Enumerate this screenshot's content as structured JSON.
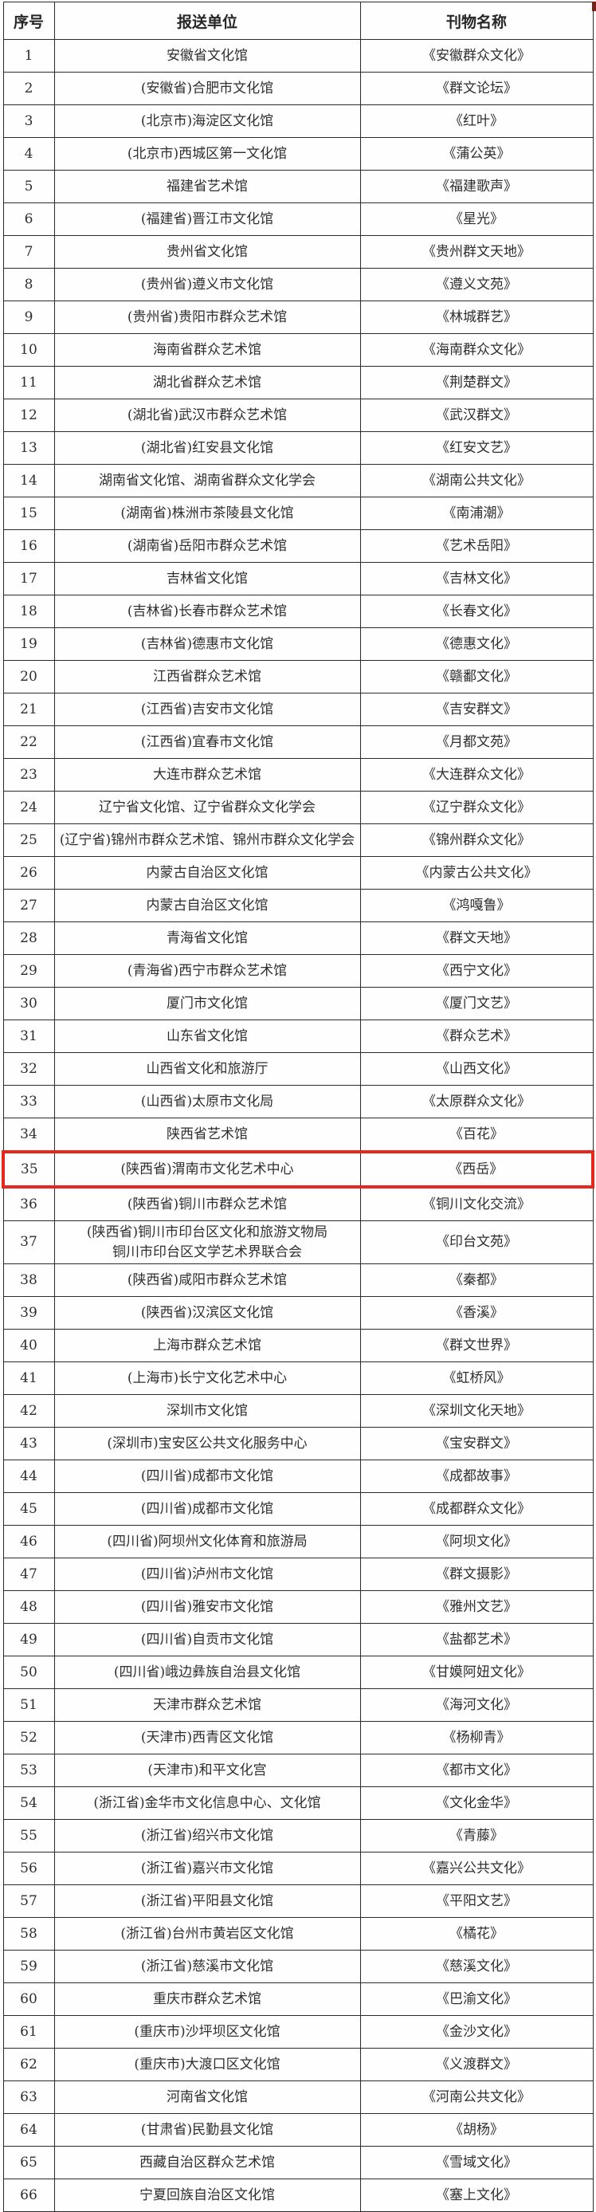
{
  "colors": {
    "highlight_border": "#e8271c",
    "grid_line": "#2b2b2b",
    "text": "#2e2e2e",
    "background": "#ffffff"
  },
  "table": {
    "columns": [
      "序号",
      "报送单位",
      "刊物名称"
    ],
    "highlight_row_no": "35",
    "rows": [
      {
        "no": "1",
        "unit": "安徽省文化馆",
        "publication": "《安徽群众文化》"
      },
      {
        "no": "2",
        "unit": "(安徽省)合肥市文化馆",
        "publication": "《群文论坛》"
      },
      {
        "no": "3",
        "unit": "(北京市)海淀区文化馆",
        "publication": "《红叶》"
      },
      {
        "no": "4",
        "unit": "(北京市)西城区第一文化馆",
        "publication": "《蒲公英》"
      },
      {
        "no": "5",
        "unit": "福建省艺术馆",
        "publication": "《福建歌声》"
      },
      {
        "no": "6",
        "unit": "(福建省)晋江市文化馆",
        "publication": "《星光》"
      },
      {
        "no": "7",
        "unit": "贵州省文化馆",
        "publication": "《贵州群文天地》"
      },
      {
        "no": "8",
        "unit": "(贵州省)遵义市文化馆",
        "publication": "《遵义文苑》"
      },
      {
        "no": "9",
        "unit": "(贵州省)贵阳市群众艺术馆",
        "publication": "《林城群艺》"
      },
      {
        "no": "10",
        "unit": "海南省群众艺术馆",
        "publication": "《海南群众文化》"
      },
      {
        "no": "11",
        "unit": "湖北省群众艺术馆",
        "publication": "《荆楚群文》"
      },
      {
        "no": "12",
        "unit": "(湖北省)武汉市群众艺术馆",
        "publication": "《武汉群文》"
      },
      {
        "no": "13",
        "unit": "(湖北省)红安县文化馆",
        "publication": "《红安文艺》"
      },
      {
        "no": "14",
        "unit": "湖南省文化馆、湖南省群众文化学会",
        "publication": "《湖南公共文化》"
      },
      {
        "no": "15",
        "unit": "(湖南省)株洲市茶陵县文化馆",
        "publication": "《南浦潮》"
      },
      {
        "no": "16",
        "unit": "(湖南省)岳阳市群众艺术馆",
        "publication": "《艺术岳阳》"
      },
      {
        "no": "17",
        "unit": "吉林省文化馆",
        "publication": "《吉林文化》"
      },
      {
        "no": "18",
        "unit": "(吉林省)长春市群众艺术馆",
        "publication": "《长春文化》"
      },
      {
        "no": "19",
        "unit": "(吉林省)德惠市文化馆",
        "publication": "《德惠文化》"
      },
      {
        "no": "20",
        "unit": "江西省群众艺术馆",
        "publication": "《赣鄱文化》"
      },
      {
        "no": "21",
        "unit": "(江西省)吉安市文化馆",
        "publication": "《吉安群文》"
      },
      {
        "no": "22",
        "unit": "(江西省)宜春市文化馆",
        "publication": "《月都文苑》"
      },
      {
        "no": "23",
        "unit": "大连市群众艺术馆",
        "publication": "《大连群众文化》"
      },
      {
        "no": "24",
        "unit": "辽宁省文化馆、辽宁省群众文化学会",
        "publication": "《辽宁群众文化》"
      },
      {
        "no": "25",
        "unit": "(辽宁省)锦州市群众艺术馆、锦州市群众文化学会",
        "publication": "《锦州群众文化》"
      },
      {
        "no": "26",
        "unit": "内蒙古自治区文化馆",
        "publication": "《内蒙古公共文化》"
      },
      {
        "no": "27",
        "unit": "内蒙古自治区文化馆",
        "publication": "《鸿嘎鲁》"
      },
      {
        "no": "28",
        "unit": "青海省文化馆",
        "publication": "《群文天地》"
      },
      {
        "no": "29",
        "unit": "(青海省)西宁市群众艺术馆",
        "publication": "《西宁文化》"
      },
      {
        "no": "30",
        "unit": "厦门市文化馆",
        "publication": "《厦门文艺》"
      },
      {
        "no": "31",
        "unit": "山东省文化馆",
        "publication": "《群众艺术》"
      },
      {
        "no": "32",
        "unit": "山西省文化和旅游厅",
        "publication": "《山西文化》"
      },
      {
        "no": "33",
        "unit": "(山西省)太原市文化局",
        "publication": "《太原群众文化》"
      },
      {
        "no": "34",
        "unit": "陕西省艺术馆",
        "publication": "《百花》"
      },
      {
        "no": "35",
        "unit": "(陕西省)渭南市文化艺术中心",
        "publication": "《西岳》"
      },
      {
        "no": "36",
        "unit": "(陕西省)铜川市群众艺术馆",
        "publication": "《铜川文化交流》"
      },
      {
        "no": "37",
        "unit": "(陕西省)铜川市印台区文化和旅游文物局\n铜川市印台区文学艺术界联合会",
        "publication": "《印台文苑》"
      },
      {
        "no": "38",
        "unit": "(陕西省)咸阳市群众艺术馆",
        "publication": "《秦都》"
      },
      {
        "no": "39",
        "unit": "(陕西省)汉滨区文化馆",
        "publication": "《香溪》"
      },
      {
        "no": "40",
        "unit": "上海市群众艺术馆",
        "publication": "《群文世界》"
      },
      {
        "no": "41",
        "unit": "(上海市)长宁文化艺术中心",
        "publication": "《虹桥风》"
      },
      {
        "no": "42",
        "unit": "深圳市文化馆",
        "publication": "《深圳文化天地》"
      },
      {
        "no": "43",
        "unit": "(深圳市)宝安区公共文化服务中心",
        "publication": "《宝安群文》"
      },
      {
        "no": "44",
        "unit": "(四川省)成都市文化馆",
        "publication": "《成都故事》"
      },
      {
        "no": "45",
        "unit": "(四川省)成都市文化馆",
        "publication": "《成都群众文化》"
      },
      {
        "no": "46",
        "unit": "(四川省)阿坝州文化体育和旅游局",
        "publication": "《阿坝文化》"
      },
      {
        "no": "47",
        "unit": "(四川省)泸州市文化馆",
        "publication": "《群文摄影》"
      },
      {
        "no": "48",
        "unit": "(四川省)雅安市文化馆",
        "publication": "《雅州文艺》"
      },
      {
        "no": "49",
        "unit": "(四川省)自贡市文化馆",
        "publication": "《盐都艺术》"
      },
      {
        "no": "50",
        "unit": "(四川省)峨边彝族自治县文化馆",
        "publication": "《甘嫫阿妞文化》"
      },
      {
        "no": "51",
        "unit": "天津市群众艺术馆",
        "publication": "《海河文化》"
      },
      {
        "no": "52",
        "unit": "(天津市)西青区文化馆",
        "publication": "《杨柳青》"
      },
      {
        "no": "53",
        "unit": "(天津市)和平文化宫",
        "publication": "《都市文化》"
      },
      {
        "no": "54",
        "unit": "(浙江省)金华市文化信息中心、文化馆",
        "publication": "《文化金华》"
      },
      {
        "no": "55",
        "unit": "(浙江省)绍兴市文化馆",
        "publication": "《青藤》"
      },
      {
        "no": "56",
        "unit": "(浙江省)嘉兴市文化馆",
        "publication": "《嘉兴公共文化》"
      },
      {
        "no": "57",
        "unit": "(浙江省)平阳县文化馆",
        "publication": "《平阳文艺》"
      },
      {
        "no": "58",
        "unit": "(浙江省)台州市黄岩区文化馆",
        "publication": "《橘花》"
      },
      {
        "no": "59",
        "unit": "(浙江省)慈溪市文化馆",
        "publication": "《慈溪文化》"
      },
      {
        "no": "60",
        "unit": "重庆市群众艺术馆",
        "publication": "《巴渝文化》"
      },
      {
        "no": "61",
        "unit": "(重庆市)沙坪坝区文化馆",
        "publication": "《金沙文化》"
      },
      {
        "no": "62",
        "unit": "(重庆市)大渡口区文化馆",
        "publication": "《义渡群文》"
      },
      {
        "no": "63",
        "unit": "河南省文化馆",
        "publication": "《河南公共文化》"
      },
      {
        "no": "64",
        "unit": "(甘肃省)民勤县文化馆",
        "publication": "《胡杨》"
      },
      {
        "no": "65",
        "unit": "西藏自治区群众艺术馆",
        "publication": "《雪域文化》"
      },
      {
        "no": "66",
        "unit": "宁夏回族自治区文化馆",
        "publication": "《塞上文化》"
      }
    ]
  }
}
